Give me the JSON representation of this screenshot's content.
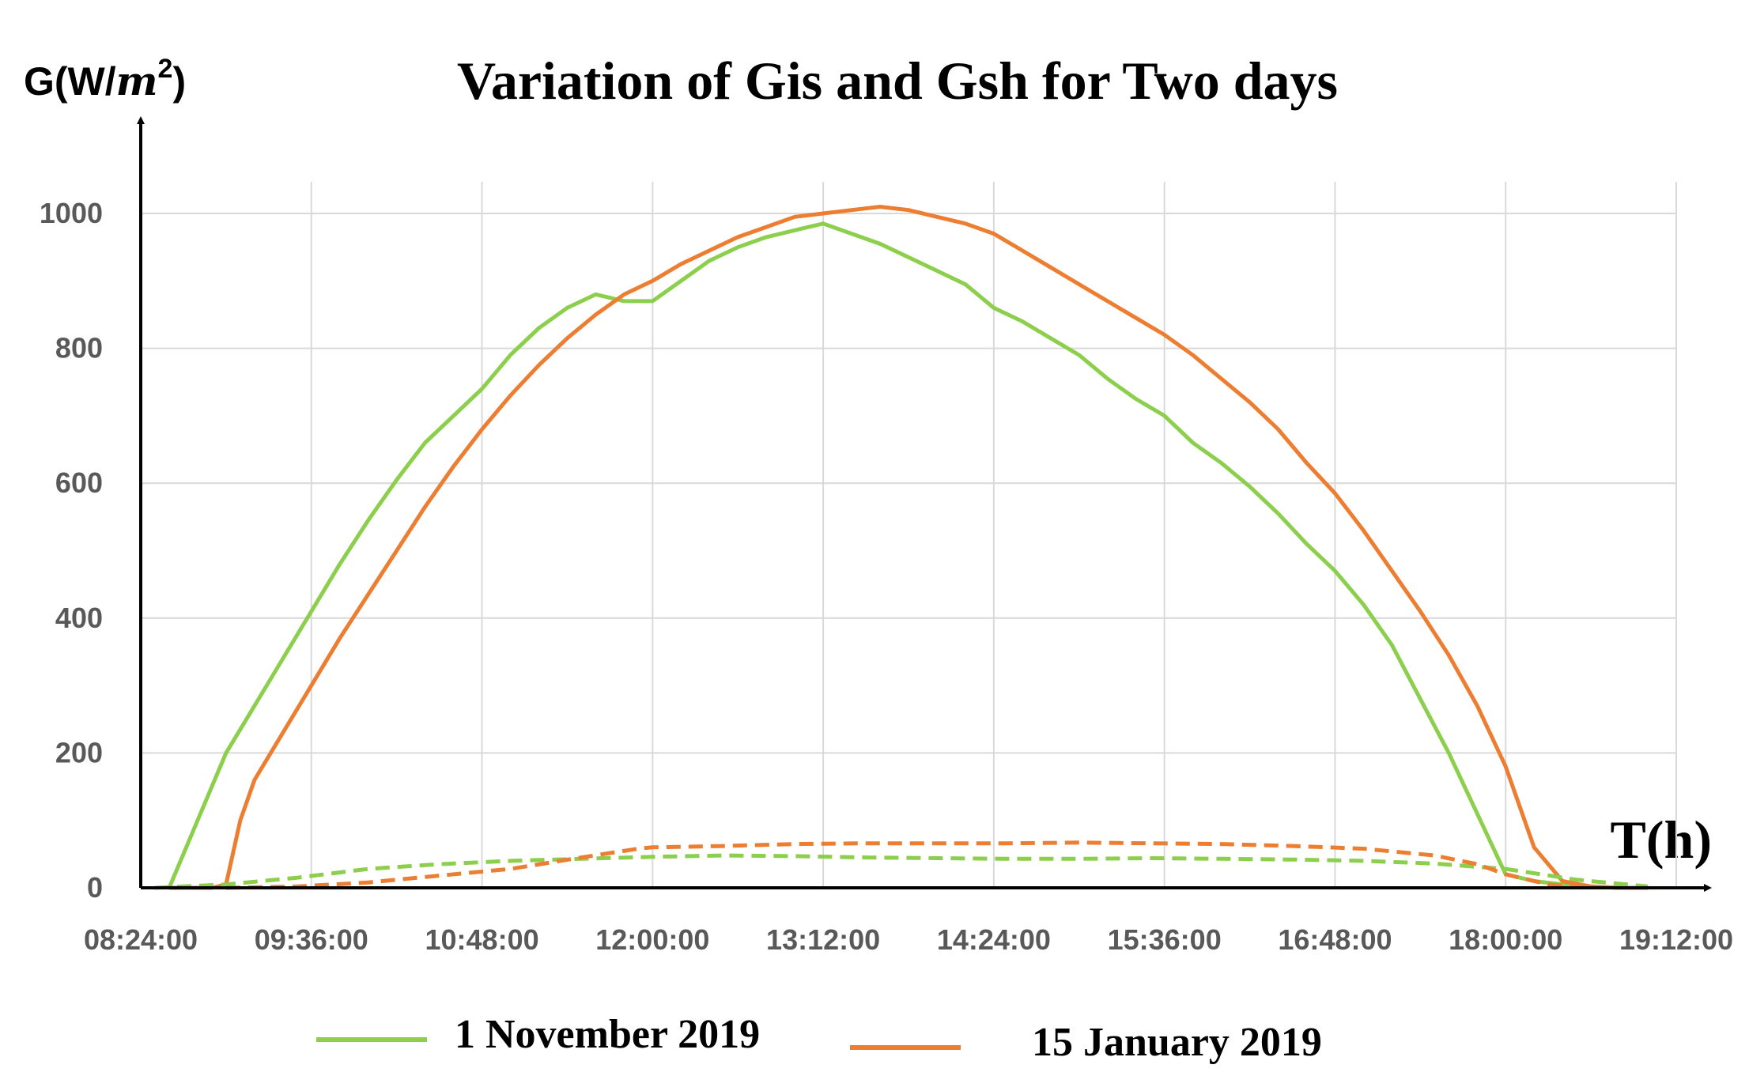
{
  "chart_data": {
    "type": "line",
    "title": "Variation of Gis and Gsh for Two days",
    "ylabel": "G(W/m²)",
    "ylabel_base": "G(W/",
    "ylabel_unit": "m",
    "ylabel_exp": "2",
    "ylabel_close": ")",
    "xlabel": "T(h)",
    "ylim": [
      0,
      1000
    ],
    "yticks": [
      0,
      200,
      400,
      600,
      800,
      1000
    ],
    "xlim_hours": [
      8.4,
      19.2
    ],
    "xticks": [
      "08:24:00",
      "09:36:00",
      "10:48:00",
      "12:00:00",
      "13:12:00",
      "14:24:00",
      "15:36:00",
      "16:48:00",
      "18:00:00",
      "19:12:00"
    ],
    "grid": true,
    "legend_position": "bottom",
    "legend": [
      "1 November 2019",
      "15 January 2019"
    ],
    "colors": {
      "nov": "#8ccf4d",
      "jan": "#ed7d31",
      "axis": "#000000"
    },
    "series": [
      {
        "name": "1 November 2019 (Gis)",
        "style": "solid",
        "color": "#8ccf4d",
        "x_hours": [
          8.6,
          8.8,
          9.0,
          9.2,
          9.4,
          9.6,
          9.8,
          10.0,
          10.2,
          10.4,
          10.6,
          10.8,
          11.0,
          11.2,
          11.4,
          11.6,
          11.8,
          12.0,
          12.2,
          12.4,
          12.6,
          12.8,
          13.0,
          13.2,
          13.4,
          13.6,
          13.8,
          14.0,
          14.2,
          14.4,
          14.6,
          14.8,
          15.0,
          15.2,
          15.4,
          15.6,
          15.8,
          16.0,
          16.2,
          16.4,
          16.6,
          16.8,
          17.0,
          17.2,
          17.4,
          17.6,
          17.8,
          18.0,
          18.2,
          18.4,
          18.6,
          18.8
        ],
        "values": [
          0,
          100,
          200,
          270,
          340,
          410,
          480,
          545,
          605,
          660,
          700,
          740,
          790,
          830,
          860,
          880,
          870,
          870,
          900,
          930,
          950,
          965,
          975,
          985,
          970,
          955,
          935,
          915,
          895,
          860,
          840,
          815,
          790,
          755,
          725,
          700,
          660,
          630,
          595,
          555,
          510,
          470,
          420,
          360,
          280,
          200,
          110,
          20,
          10,
          5,
          2,
          0
        ]
      },
      {
        "name": "15 January 2019 (Gis)",
        "style": "solid",
        "color": "#ed7d31",
        "x_hours": [
          8.6,
          8.9,
          9.0,
          9.1,
          9.2,
          9.4,
          9.6,
          9.8,
          10.0,
          10.2,
          10.4,
          10.6,
          10.8,
          11.0,
          11.2,
          11.4,
          11.6,
          11.8,
          12.0,
          12.2,
          12.4,
          12.6,
          12.8,
          13.0,
          13.2,
          13.4,
          13.6,
          13.8,
          14.0,
          14.2,
          14.4,
          14.6,
          14.8,
          15.0,
          15.2,
          15.4,
          15.6,
          15.8,
          16.0,
          16.2,
          16.4,
          16.6,
          16.8,
          17.0,
          17.2,
          17.4,
          17.6,
          17.8,
          18.0,
          18.2,
          18.4,
          18.6,
          18.8,
          19.0
        ],
        "values": [
          0,
          0,
          5,
          100,
          160,
          230,
          300,
          370,
          435,
          500,
          565,
          625,
          680,
          730,
          775,
          815,
          850,
          880,
          900,
          925,
          945,
          965,
          980,
          995,
          1000,
          1005,
          1010,
          1005,
          995,
          985,
          970,
          945,
          920,
          895,
          870,
          845,
          820,
          790,
          755,
          720,
          680,
          630,
          585,
          530,
          470,
          410,
          345,
          270,
          180,
          60,
          10,
          2,
          0,
          0
        ]
      },
      {
        "name": "1 November 2019 (Gsh)",
        "style": "dashed",
        "color": "#8ccf4d",
        "x_hours": [
          8.5,
          9.0,
          9.5,
          10.0,
          10.5,
          11.0,
          11.5,
          12.0,
          12.5,
          13.0,
          13.5,
          14.0,
          14.5,
          15.0,
          15.5,
          16.0,
          16.5,
          17.0,
          17.5,
          18.0,
          18.5,
          19.0
        ],
        "values": [
          0,
          5,
          15,
          28,
          35,
          40,
          43,
          46,
          48,
          47,
          45,
          44,
          43,
          43,
          44,
          43,
          42,
          40,
          36,
          28,
          12,
          2
        ]
      },
      {
        "name": "15 January 2019 (Gsh)",
        "style": "dashed",
        "color": "#ed7d31",
        "x_hours": [
          9.0,
          9.5,
          10.0,
          10.5,
          11.0,
          11.5,
          11.9,
          12.0,
          12.5,
          13.0,
          13.5,
          14.0,
          14.5,
          15.0,
          15.5,
          16.0,
          16.5,
          17.0,
          17.5,
          17.8,
          18.0,
          18.3,
          18.6
        ],
        "values": [
          0,
          2,
          8,
          18,
          28,
          45,
          58,
          60,
          62,
          65,
          66,
          66,
          66,
          67,
          66,
          65,
          62,
          58,
          48,
          35,
          20,
          5,
          0
        ]
      }
    ]
  }
}
